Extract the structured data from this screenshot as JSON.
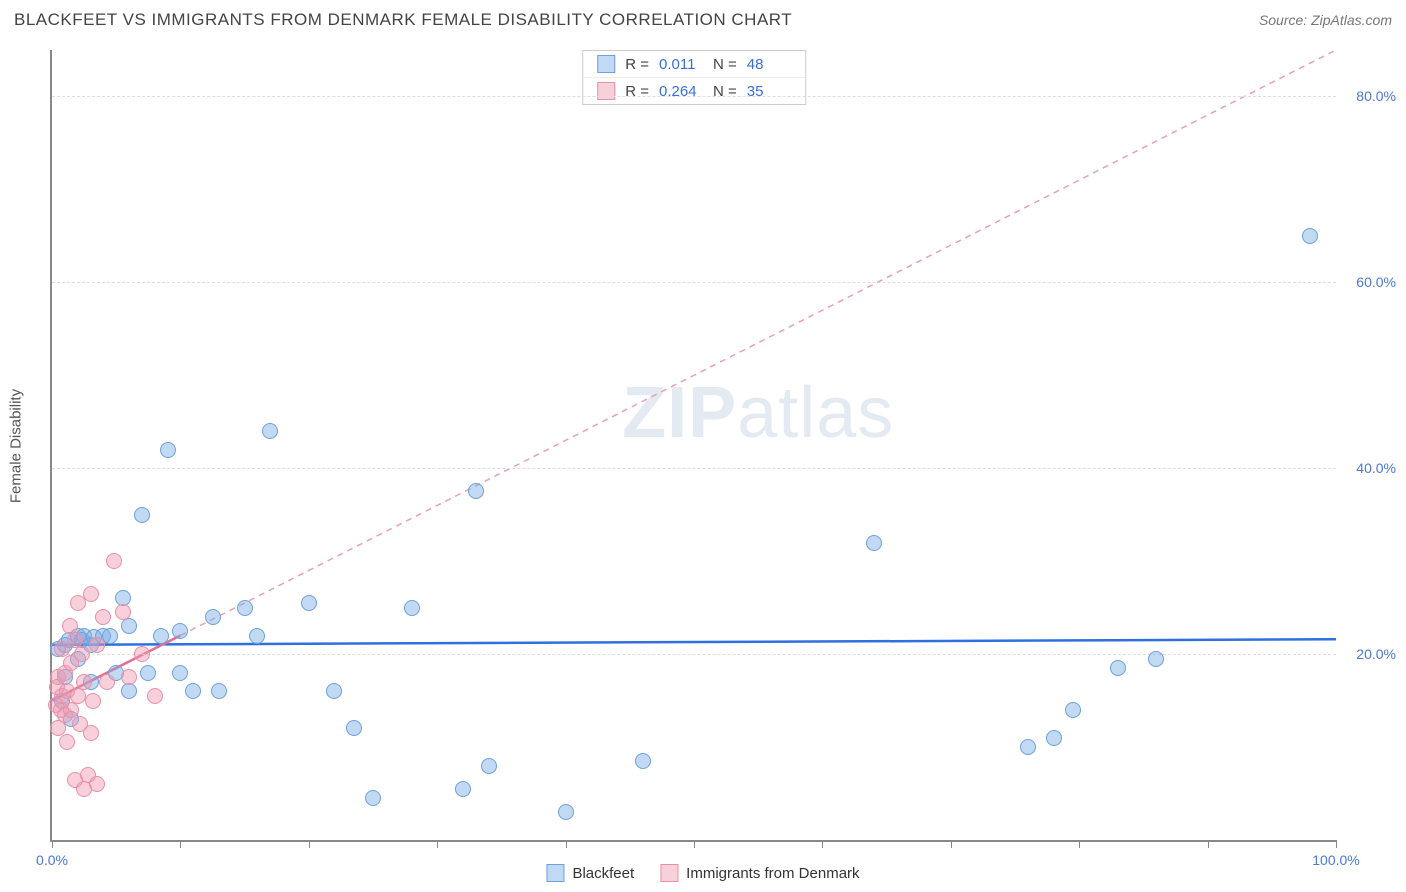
{
  "header": {
    "title": "BLACKFEET VS IMMIGRANTS FROM DENMARK FEMALE DISABILITY CORRELATION CHART",
    "source_prefix": "Source: ",
    "source_name": "ZipAtlas.com"
  },
  "ylabel": "Female Disability",
  "watermark": {
    "bold": "ZIP",
    "rest": "atlas"
  },
  "axes": {
    "xlim": [
      0,
      100
    ],
    "ylim": [
      0,
      85
    ],
    "xticks": [
      0,
      10,
      20,
      30,
      40,
      50,
      60,
      70,
      80,
      90,
      100
    ],
    "xtick_labels": {
      "0": "0.0%",
      "100": "100.0%"
    },
    "xtick_label_color": "#4a78d6",
    "yticks": [
      20,
      40,
      60,
      80
    ],
    "ytick_labels": {
      "20": "20.0%",
      "40": "40.0%",
      "60": "60.0%",
      "80": "80.0%"
    },
    "ytick_label_color": "#4a78d6",
    "grid_color": "#dddddd"
  },
  "series": [
    {
      "key": "blackfeet",
      "label": "Blackfeet",
      "fill": "rgba(120,170,230,0.45)",
      "stroke": "#6fa0d8",
      "marker_size": 16,
      "R": "0.011",
      "N": "48",
      "trend": {
        "x1": 0,
        "y1": 21,
        "x2": 100,
        "y2": 21.6,
        "color": "#2f6fe0",
        "width": 2.5,
        "dash": ""
      },
      "points": [
        [
          0.5,
          20.5
        ],
        [
          0.8,
          15.0
        ],
        [
          1.0,
          17.5
        ],
        [
          1.0,
          21.0
        ],
        [
          1.3,
          21.5
        ],
        [
          1.5,
          13.0
        ],
        [
          2.0,
          22.0
        ],
        [
          2.0,
          19.5
        ],
        [
          2.3,
          21.5
        ],
        [
          2.5,
          22.0
        ],
        [
          3.0,
          21.0
        ],
        [
          3.0,
          17.0
        ],
        [
          3.3,
          21.8
        ],
        [
          4.0,
          22.0
        ],
        [
          4.5,
          22.0
        ],
        [
          5.0,
          18.0
        ],
        [
          5.5,
          26.0
        ],
        [
          6.0,
          23.0
        ],
        [
          6.0,
          16.0
        ],
        [
          7.0,
          35.0
        ],
        [
          7.5,
          18.0
        ],
        [
          8.5,
          22.0
        ],
        [
          9.0,
          42.0
        ],
        [
          10.0,
          22.5
        ],
        [
          10.0,
          18.0
        ],
        [
          11.0,
          16.0
        ],
        [
          12.5,
          24.0
        ],
        [
          13.0,
          16.0
        ],
        [
          15.0,
          25.0
        ],
        [
          16.0,
          22.0
        ],
        [
          17.0,
          44.0
        ],
        [
          20.0,
          25.5
        ],
        [
          22.0,
          16.0
        ],
        [
          23.5,
          12.0
        ],
        [
          25.0,
          4.5
        ],
        [
          28.0,
          25.0
        ],
        [
          32.0,
          5.5
        ],
        [
          33.0,
          37.5
        ],
        [
          34.0,
          8.0
        ],
        [
          40.0,
          3.0
        ],
        [
          46.0,
          8.5
        ],
        [
          64.0,
          32.0
        ],
        [
          76.0,
          10.0
        ],
        [
          78.0,
          11.0
        ],
        [
          79.5,
          14.0
        ],
        [
          83.0,
          18.5
        ],
        [
          86.0,
          19.5
        ],
        [
          98.0,
          65.0
        ]
      ]
    },
    {
      "key": "denmark",
      "label": "Immigrants from Denmark",
      "fill": "rgba(240,150,175,0.45)",
      "stroke": "#e890a8",
      "marker_size": 16,
      "R": "0.264",
      "N": "35",
      "trend": {
        "x1": 0,
        "y1": 15,
        "x2": 10,
        "y2": 22,
        "color": "#e07090",
        "width": 2.5,
        "dash": ""
      },
      "trend_ext": {
        "x1": 10,
        "y1": 22,
        "x2": 100,
        "y2": 85,
        "color": "#e8a0b5",
        "width": 1.5,
        "dash": "6 5"
      },
      "points": [
        [
          0.3,
          14.5
        ],
        [
          0.4,
          16.5
        ],
        [
          0.5,
          12.0
        ],
        [
          0.5,
          17.5
        ],
        [
          0.7,
          14.0
        ],
        [
          0.8,
          20.5
        ],
        [
          0.8,
          15.5
        ],
        [
          1.0,
          13.5
        ],
        [
          1.0,
          18.0
        ],
        [
          1.2,
          10.5
        ],
        [
          1.2,
          16.0
        ],
        [
          1.4,
          23.0
        ],
        [
          1.5,
          14.0
        ],
        [
          1.5,
          19.0
        ],
        [
          1.8,
          6.5
        ],
        [
          1.8,
          21.5
        ],
        [
          2.0,
          15.5
        ],
        [
          2.0,
          25.5
        ],
        [
          2.2,
          12.5
        ],
        [
          2.3,
          20.0
        ],
        [
          2.5,
          17.0
        ],
        [
          2.5,
          5.5
        ],
        [
          2.8,
          7.0
        ],
        [
          3.0,
          26.5
        ],
        [
          3.0,
          11.5
        ],
        [
          3.2,
          15.0
        ],
        [
          3.5,
          21.0
        ],
        [
          3.5,
          6.0
        ],
        [
          4.0,
          24.0
        ],
        [
          4.3,
          17.0
        ],
        [
          4.8,
          30.0
        ],
        [
          5.5,
          24.5
        ],
        [
          6.0,
          17.5
        ],
        [
          7.0,
          20.0
        ],
        [
          8.0,
          15.5
        ]
      ]
    }
  ],
  "stats_legend": {
    "value_color": "#3a6fd8",
    "rows": [
      {
        "swatch_fill": "rgba(120,170,230,0.45)",
        "swatch_stroke": "#6fa0d8",
        "R_label": "R =",
        "R": "0.011",
        "N_label": "N =",
        "N": "48"
      },
      {
        "swatch_fill": "rgba(240,150,175,0.45)",
        "swatch_stroke": "#e890a8",
        "R_label": "R =",
        "R": "0.264",
        "N_label": "N =",
        "N": "35"
      }
    ]
  },
  "bottom_legend": [
    {
      "swatch_fill": "rgba(120,170,230,0.45)",
      "swatch_stroke": "#6fa0d8",
      "label": "Blackfeet"
    },
    {
      "swatch_fill": "rgba(240,150,175,0.45)",
      "swatch_stroke": "#e890a8",
      "label": "Immigrants from Denmark"
    }
  ]
}
